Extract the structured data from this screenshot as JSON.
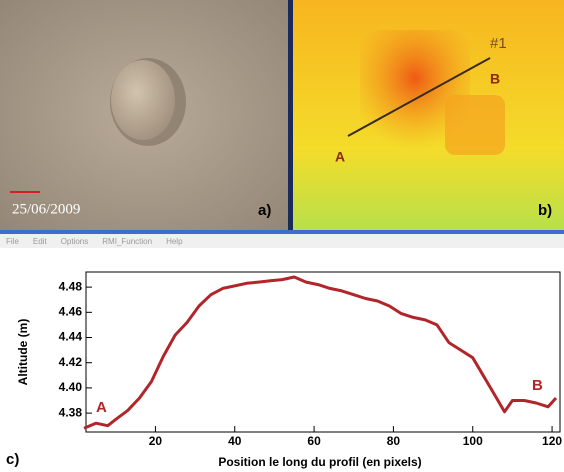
{
  "panels": {
    "a": {
      "label": "a)",
      "date": "25/06/2009"
    },
    "b": {
      "label": "b)",
      "profile": "#1",
      "start": "A",
      "end": "B"
    }
  },
  "menu": [
    "File",
    "Edit",
    "Options",
    "RMI_Function",
    "Help"
  ],
  "chart_data": {
    "type": "line",
    "panel_label": "c)",
    "x_label": "Position le long du profil  (en pixels)",
    "y_label": "Altitude (m)",
    "annotations": [
      "A",
      "B"
    ],
    "x": [
      2,
      5,
      8,
      10,
      13,
      16,
      19,
      22,
      25,
      28,
      31,
      34,
      37,
      40,
      43,
      46,
      49,
      52,
      55,
      58,
      61,
      64,
      67,
      70,
      73,
      76,
      79,
      82,
      85,
      88,
      91,
      94,
      97,
      100,
      103,
      106,
      108,
      110,
      113,
      116,
      119,
      121
    ],
    "values": [
      4.368,
      4.372,
      4.37,
      4.375,
      4.382,
      4.392,
      4.405,
      4.425,
      4.442,
      4.452,
      4.465,
      4.474,
      4.479,
      4.481,
      4.483,
      4.484,
      4.485,
      4.486,
      4.488,
      4.484,
      4.482,
      4.479,
      4.477,
      4.474,
      4.471,
      4.469,
      4.465,
      4.459,
      4.456,
      4.454,
      4.45,
      4.436,
      4.43,
      4.424,
      4.408,
      4.392,
      4.381,
      4.39,
      4.39,
      4.388,
      4.385,
      4.392
    ],
    "color": "#b0262a",
    "xlim": [
      2.5,
      122
    ],
    "ylim": [
      4.365,
      4.492
    ],
    "xticks": [
      20,
      40,
      60,
      80,
      100,
      120
    ],
    "yticks": [
      4.38,
      {
        "value": 4.4,
        "label": "4.40"
      },
      4.42,
      4.44,
      4.46,
      4.48
    ]
  }
}
